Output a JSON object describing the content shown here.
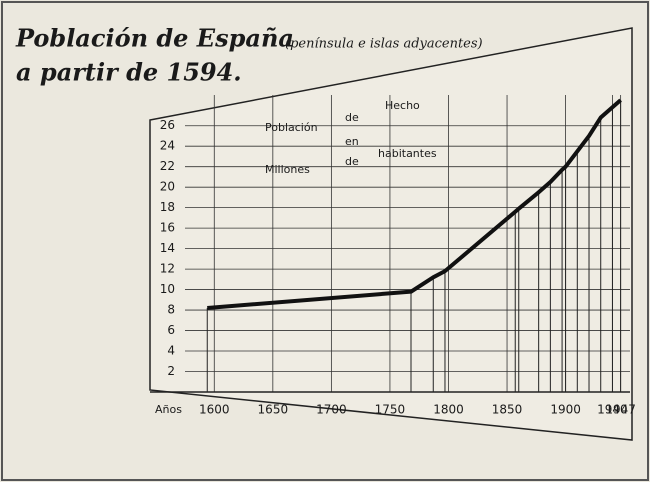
{
  "chart_data": {
    "type": "line",
    "title": "Población de España",
    "subtitle": "(península e islas adyacentes)",
    "title_line2": "a partir de 1594.",
    "annotations": [
      "Población",
      "de",
      "Hecho",
      "en",
      "Millones",
      "de",
      "habitantes"
    ],
    "x_label": "Años",
    "x": [
      1594,
      1768,
      1787,
      1797,
      1857,
      1860,
      1877,
      1887,
      1897,
      1900,
      1910,
      1920,
      1930,
      1940,
      1947
    ],
    "series": [
      {
        "name": "Población",
        "color": "#111111",
        "values": [
          8.2,
          9.8,
          11.2,
          11.8,
          17.6,
          17.9,
          19.5,
          20.5,
          21.7,
          22,
          23.5,
          25,
          26.8,
          27.8,
          28.5
        ]
      }
    ],
    "xlim": [
      1575,
      1955
    ],
    "xticks": [
      1600,
      1650,
      1700,
      1750,
      1800,
      1850,
      1900,
      1940,
      1947
    ],
    "ylim": [
      0,
      29
    ],
    "yticks": [
      2,
      4,
      6,
      8,
      10,
      12,
      14,
      16,
      18,
      20,
      22,
      24,
      26
    ],
    "grid": true
  }
}
